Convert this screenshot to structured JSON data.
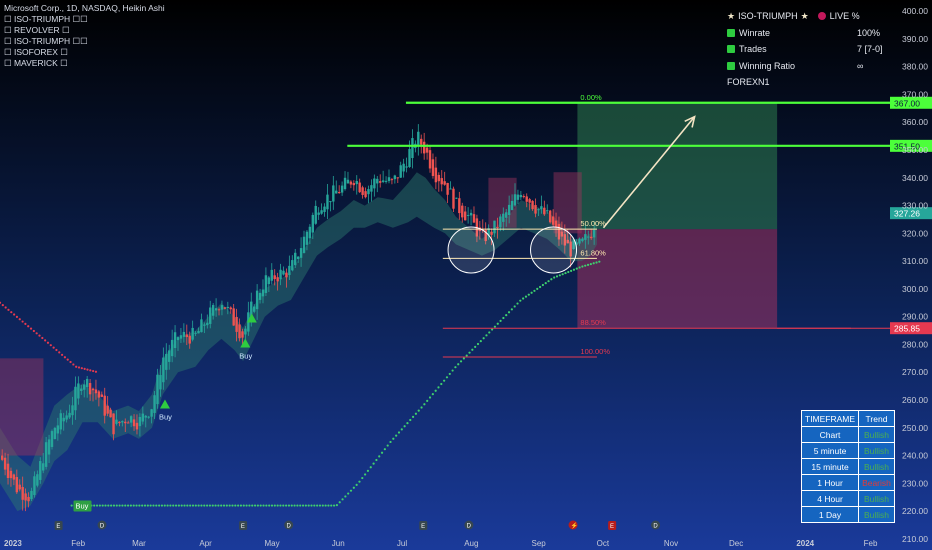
{
  "header": {
    "title": "Microsoft Corp., 1D, NASDAQ, Heikin Ashi",
    "indicators": [
      "☐ ISO-TRIUMPH ☐☐",
      "☐ REVOLVER ☐",
      "☐ ISO-TRIUMPH ☐☐",
      "☐ ISOFOREX ☐",
      "☐ MAVERICK ☐"
    ]
  },
  "stats_panel": {
    "name": "ISO-TRIUMPH",
    "live": "LIVE %",
    "rows": [
      {
        "label": "Winrate",
        "value": "100%"
      },
      {
        "label": "Trades",
        "value": "7 [7-0]"
      },
      {
        "label": "Winning Ratio",
        "value": "∞"
      }
    ],
    "footer": "FOREXN1"
  },
  "timeframe_table": {
    "header": [
      "TIMEFRAME",
      "Trend"
    ],
    "rows": [
      {
        "tf": "Chart",
        "trend": "Bullish"
      },
      {
        "tf": "5 minute",
        "trend": "Bullish"
      },
      {
        "tf": "15 minute",
        "trend": "Bullish"
      },
      {
        "tf": "1 Hour",
        "trend": "Bearish"
      },
      {
        "tf": "4 Hour",
        "trend": "Bullish"
      },
      {
        "tf": "1 Day",
        "trend": "Bullish"
      }
    ]
  },
  "colors": {
    "background": "#0b1a3a",
    "bull": "#2e9e6b",
    "bear": "#c2185b",
    "resistance": "#4cff3a",
    "fib": "#ffe9b0",
    "stop": "#e53950"
  },
  "chart_data": {
    "type": "candlestick",
    "yticks": [
      210,
      220,
      230,
      240,
      250,
      260,
      270,
      280,
      290,
      300,
      310,
      320,
      330,
      340,
      350,
      360,
      370,
      380,
      390,
      400
    ],
    "ylim": [
      206,
      404
    ],
    "xticks": [
      {
        "label": "2023",
        "x": 0
      },
      {
        "label": "Feb",
        "x": 31
      },
      {
        "label": "Mar",
        "x": 59
      },
      {
        "label": "Apr",
        "x": 90
      },
      {
        "label": "May",
        "x": 120
      },
      {
        "label": "Jun",
        "x": 151
      },
      {
        "label": "Jul",
        "x": 181
      },
      {
        "label": "Aug",
        "x": 212
      },
      {
        "label": "Sep",
        "x": 243
      },
      {
        "label": "Oct",
        "x": 273
      },
      {
        "label": "Nov",
        "x": 304
      },
      {
        "label": "Dec",
        "x": 334
      },
      {
        "label": "2024",
        "x": 365
      },
      {
        "label": "Feb",
        "x": 396
      }
    ],
    "xlim": [
      0,
      410
    ],
    "price_path": [
      [
        0,
        240
      ],
      [
        8,
        228
      ],
      [
        14,
        225
      ],
      [
        20,
        240
      ],
      [
        25,
        250
      ],
      [
        31,
        255
      ],
      [
        38,
        268
      ],
      [
        45,
        262
      ],
      [
        52,
        250
      ],
      [
        59,
        254
      ],
      [
        64,
        252
      ],
      [
        70,
        258
      ],
      [
        75,
        275
      ],
      [
        82,
        283
      ],
      [
        90,
        283
      ],
      [
        96,
        290
      ],
      [
        102,
        296
      ],
      [
        108,
        288
      ],
      [
        112,
        283
      ],
      [
        117,
        296
      ],
      [
        122,
        303
      ],
      [
        128,
        305
      ],
      [
        134,
        307
      ],
      [
        140,
        318
      ],
      [
        146,
        330
      ],
      [
        151,
        333
      ],
      [
        157,
        336
      ],
      [
        163,
        340
      ],
      [
        168,
        335
      ],
      [
        174,
        340
      ],
      [
        181,
        338
      ],
      [
        188,
        348
      ],
      [
        192,
        355
      ],
      [
        196,
        350
      ],
      [
        200,
        342
      ],
      [
        205,
        338
      ],
      [
        210,
        330
      ],
      [
        216,
        326
      ],
      [
        222,
        318
      ],
      [
        228,
        322
      ],
      [
        234,
        328
      ],
      [
        240,
        336
      ],
      [
        246,
        330
      ],
      [
        252,
        326
      ],
      [
        258,
        318
      ],
      [
        263,
        314
      ],
      [
        268,
        316
      ],
      [
        272,
        320
      ],
      [
        275,
        326
      ]
    ],
    "trail_stop_top": [
      [
        0,
        295
      ],
      [
        20,
        282
      ],
      [
        35,
        272
      ],
      [
        45,
        270
      ]
    ],
    "trail_stop_bottom": [
      [
        33,
        222
      ],
      [
        155,
        222
      ],
      [
        165,
        230
      ],
      [
        180,
        245
      ],
      [
        195,
        258
      ],
      [
        210,
        272
      ],
      [
        225,
        284
      ],
      [
        240,
        296
      ],
      [
        255,
        304
      ],
      [
        268,
        308
      ],
      [
        277,
        310
      ]
    ],
    "cloud_upper": [
      [
        0,
        250
      ],
      [
        8,
        240
      ],
      [
        14,
        236
      ],
      [
        20,
        248
      ],
      [
        25,
        258
      ],
      [
        31,
        262
      ],
      [
        38,
        266
      ],
      [
        45,
        262
      ],
      [
        52,
        256
      ],
      [
        59,
        258
      ],
      [
        64,
        256
      ],
      [
        70,
        262
      ],
      [
        75,
        275
      ],
      [
        82,
        282
      ],
      [
        90,
        285
      ],
      [
        96,
        290
      ],
      [
        102,
        295
      ],
      [
        108,
        290
      ],
      [
        112,
        286
      ],
      [
        117,
        294
      ],
      [
        122,
        300
      ],
      [
        128,
        303
      ],
      [
        134,
        306
      ],
      [
        140,
        314
      ],
      [
        146,
        322
      ],
      [
        151,
        325
      ],
      [
        157,
        328
      ],
      [
        163,
        332
      ],
      [
        168,
        330
      ],
      [
        174,
        333
      ],
      [
        181,
        332
      ],
      [
        188,
        338
      ],
      [
        192,
        342
      ],
      [
        196,
        340
      ],
      [
        200,
        336
      ],
      [
        205,
        332
      ],
      [
        210,
        326
      ],
      [
        216,
        322
      ],
      [
        222,
        318
      ],
      [
        228,
        322
      ],
      [
        234,
        326
      ],
      [
        240,
        332
      ],
      [
        246,
        330
      ],
      [
        252,
        328
      ],
      [
        258,
        324
      ],
      [
        263,
        318
      ],
      [
        268,
        318
      ],
      [
        272,
        320
      ],
      [
        275,
        324
      ]
    ],
    "cloud_lower": [
      [
        0,
        230
      ],
      [
        8,
        220
      ],
      [
        14,
        222
      ],
      [
        20,
        230
      ],
      [
        25,
        238
      ],
      [
        31,
        242
      ],
      [
        38,
        252
      ],
      [
        45,
        252
      ],
      [
        52,
        246
      ],
      [
        59,
        248
      ],
      [
        64,
        246
      ],
      [
        70,
        250
      ],
      [
        75,
        262
      ],
      [
        82,
        270
      ],
      [
        90,
        272
      ],
      [
        96,
        278
      ],
      [
        102,
        282
      ],
      [
        108,
        278
      ],
      [
        112,
        274
      ],
      [
        117,
        282
      ],
      [
        122,
        290
      ],
      [
        128,
        294
      ],
      [
        134,
        296
      ],
      [
        140,
        304
      ],
      [
        146,
        312
      ],
      [
        151,
        315
      ],
      [
        157,
        318
      ],
      [
        163,
        322
      ],
      [
        168,
        322
      ],
      [
        174,
        324
      ],
      [
        181,
        322
      ],
      [
        188,
        324
      ],
      [
        192,
        326
      ],
      [
        196,
        324
      ],
      [
        200,
        322
      ],
      [
        205,
        320
      ],
      [
        210,
        316
      ],
      [
        216,
        314
      ],
      [
        222,
        312
      ],
      [
        228,
        314
      ],
      [
        234,
        318
      ],
      [
        240,
        322
      ],
      [
        246,
        320
      ],
      [
        252,
        318
      ],
      [
        258,
        314
      ],
      [
        263,
        310
      ],
      [
        268,
        310
      ],
      [
        272,
        312
      ],
      [
        275,
        316
      ]
    ],
    "signals": [
      {
        "label": "Buy",
        "x": 38,
        "y": 222
      },
      {
        "label": "Buy",
        "x": 76,
        "y": 258
      },
      {
        "label": "Buy",
        "x": 113,
        "y": 280
      },
      {
        "label": "",
        "x": 116,
        "y": 289
      }
    ],
    "resistance_lines": [
      {
        "y": 367.0,
        "x0": 187,
        "label": "367.00"
      },
      {
        "y": 351.5,
        "x0": 160,
        "label": "351.50"
      }
    ],
    "current_price": {
      "y": 327.26,
      "label": "327.26"
    },
    "stop_price": {
      "y": 285.85,
      "label": "285.85"
    },
    "fib_levels": [
      {
        "pct": "0.00%",
        "y": 367.0,
        "x0": 187,
        "x1": 392,
        "color": "#4cff3a"
      },
      {
        "pct": "50.00%",
        "y": 321.5,
        "x0": 204,
        "x1": 275,
        "color": "#ffe9b0"
      },
      {
        "pct": "61.80%",
        "y": 311.0,
        "x0": 204,
        "x1": 275,
        "color": "#ffe9b0"
      },
      {
        "pct": "88.50%",
        "y": 285.85,
        "x0": 204,
        "x1": 392,
        "color": "#e53950"
      },
      {
        "pct": "100.00%",
        "y": 275.5,
        "x0": 204,
        "x1": 275,
        "color": "#e53950"
      }
    ],
    "target_box": {
      "x0": 266,
      "x1": 358,
      "top": 367.0,
      "entry": 321.5,
      "bottom": 285.85
    },
    "arrow": {
      "x0": 278,
      "y0": 322,
      "x1": 320,
      "y1": 362
    },
    "circles": [
      {
        "x": 217,
        "y": 314
      },
      {
        "x": 255,
        "y": 314
      }
    ],
    "earnings_markers": [
      {
        "x": 27,
        "kind": "E"
      },
      {
        "x": 47,
        "kind": "D"
      },
      {
        "x": 112,
        "kind": "E"
      },
      {
        "x": 133,
        "kind": "D"
      },
      {
        "x": 195,
        "kind": "E"
      },
      {
        "x": 216,
        "kind": "D"
      },
      {
        "x": 264,
        "kind": "S"
      },
      {
        "x": 282,
        "kind": "E2"
      },
      {
        "x": 302,
        "kind": "D"
      }
    ]
  }
}
